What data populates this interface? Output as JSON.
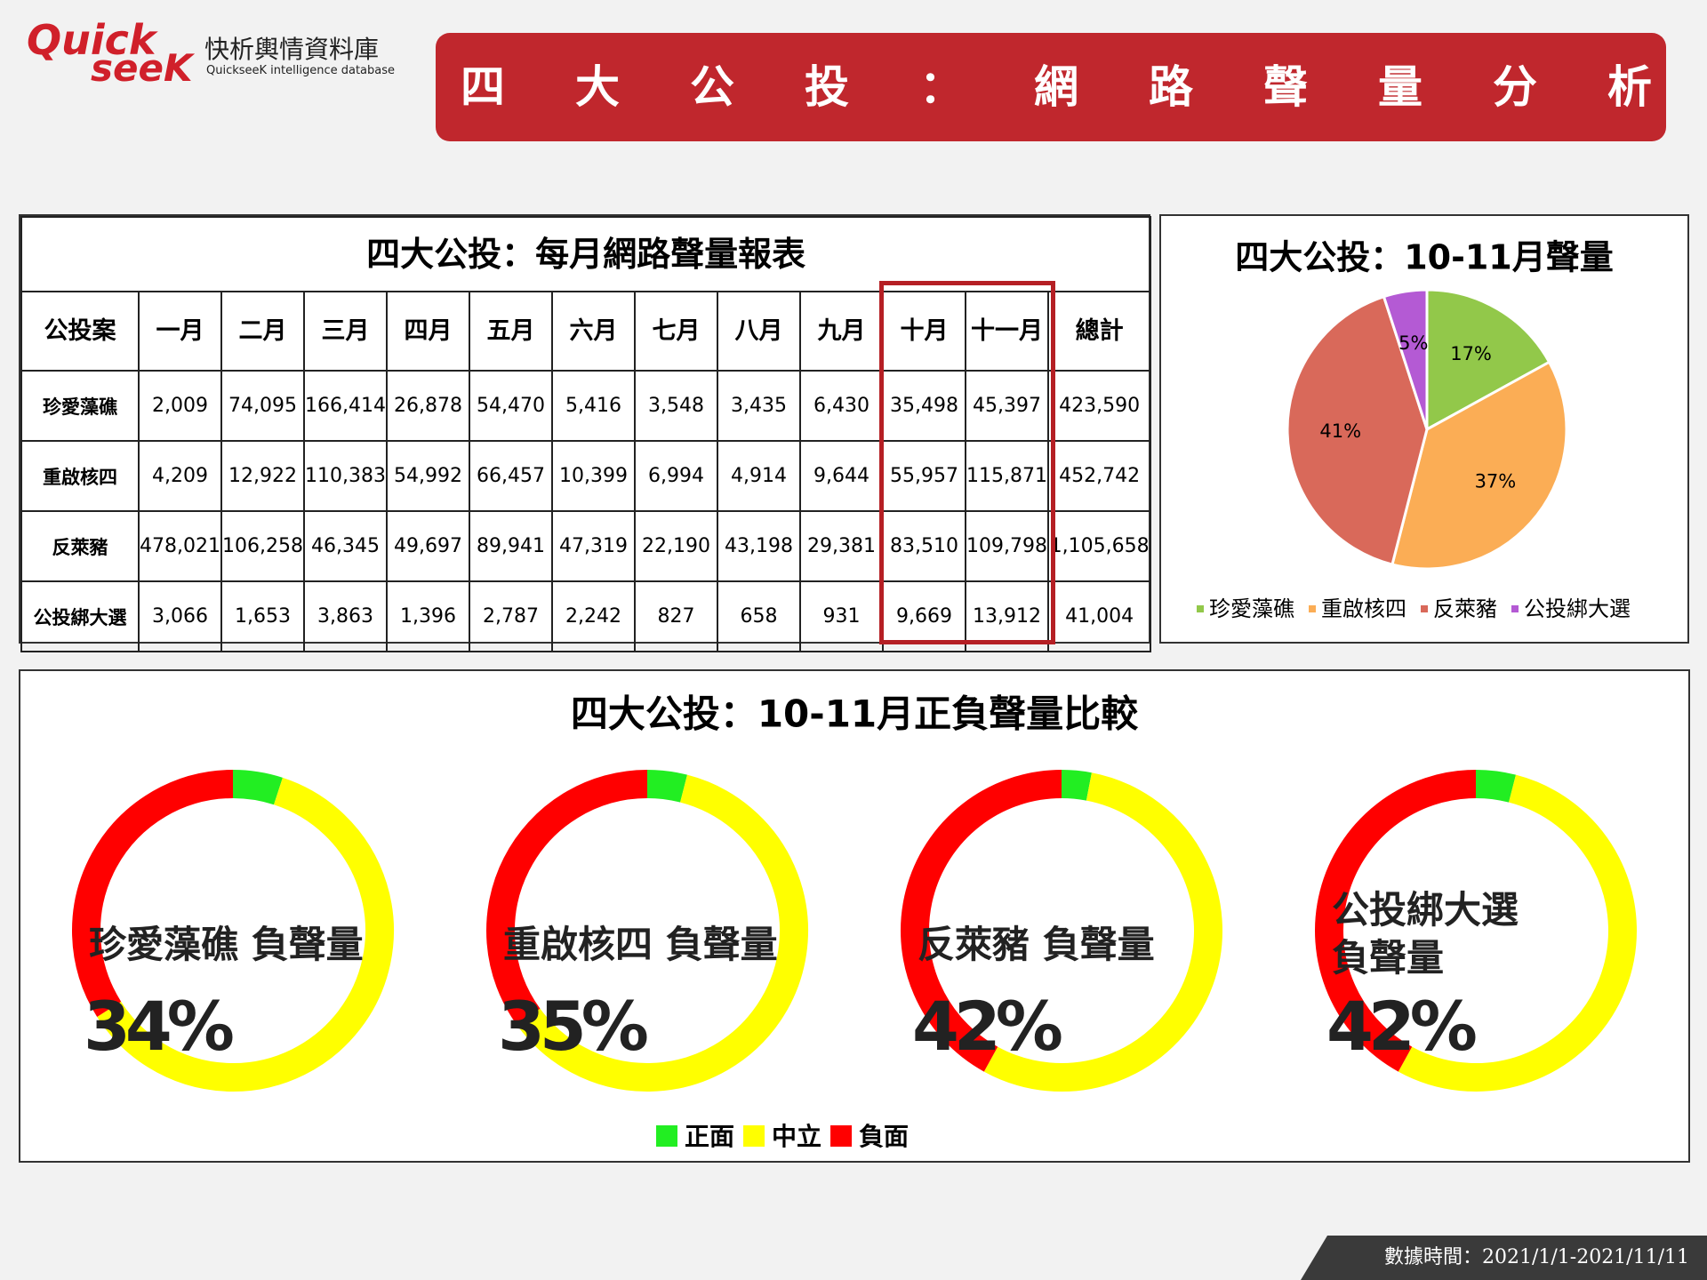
{
  "header": {
    "logo_lines": [
      "Quick",
      "seeK"
    ],
    "brand": "快析輿情資料庫",
    "brand_en": "QuickseeK intelligence database",
    "title": "四大公投：網路聲量分析"
  },
  "table": {
    "title": "四大公投：每月網路聲量報表",
    "header": [
      "公投案",
      "一月",
      "二月",
      "三月",
      "四月",
      "五月",
      "六月",
      "七月",
      "八月",
      "九月",
      "十月",
      "十一月",
      "總計"
    ],
    "rows": [
      [
        "珍愛藻礁",
        "2,009",
        "74,095",
        "166,414",
        "26,878",
        "54,470",
        "5,416",
        "3,548",
        "3,435",
        "6,430",
        "35,498",
        "45,397",
        "423,590"
      ],
      [
        "重啟核四",
        "4,209",
        "12,922",
        "110,383",
        "54,992",
        "66,457",
        "10,399",
        "6,994",
        "4,914",
        "9,644",
        "55,957",
        "115,871",
        "452,742"
      ],
      [
        "反萊豬",
        "478,021",
        "106,258",
        "46,345",
        "49,697",
        "89,941",
        "47,319",
        "22,190",
        "43,198",
        "29,381",
        "83,510",
        "109,798",
        "1,105,658"
      ],
      [
        "公投綁大選",
        "3,066",
        "1,653",
        "3,863",
        "1,396",
        "2,787",
        "2,242",
        "827",
        "658",
        "931",
        "9,669",
        "13,912",
        "41,004"
      ]
    ]
  },
  "comparison": {
    "title": "四大公投：10-11月正負聲量比較"
  },
  "chart_data": [
    {
      "type": "pie",
      "title": "四大公投：10-11月聲量",
      "categories": [
        "珍愛藻礁",
        "重啟核四",
        "反萊豬",
        "公投綁大選"
      ],
      "values": [
        17,
        37,
        41,
        5
      ],
      "value_labels": [
        "17%",
        "37%",
        "41%",
        "5%"
      ],
      "colors": [
        "#92c84a",
        "#fbad55",
        "#d9695a",
        "#b45ad4"
      ]
    },
    {
      "type": "donut",
      "title": "珍愛藻礁 負聲量",
      "categories": [
        "正面",
        "中立",
        "負面"
      ],
      "values": [
        5,
        61,
        34
      ],
      "value_labels": [
        null,
        null,
        "34%"
      ],
      "colors": [
        "#22ee22",
        "#ffff00",
        "#ff0000"
      ]
    },
    {
      "type": "donut",
      "title": "重啟核四 負聲量",
      "categories": [
        "正面",
        "中立",
        "負面"
      ],
      "values": [
        4,
        61,
        35
      ],
      "value_labels": [
        null,
        null,
        "35%"
      ],
      "colors": [
        "#22ee22",
        "#ffff00",
        "#ff0000"
      ]
    },
    {
      "type": "donut",
      "title": "反萊豬 負聲量",
      "categories": [
        "正面",
        "中立",
        "負面"
      ],
      "values": [
        3,
        55,
        42
      ],
      "value_labels": [
        null,
        null,
        "42%"
      ],
      "colors": [
        "#22ee22",
        "#ffff00",
        "#ff0000"
      ]
    },
    {
      "type": "donut",
      "title": "公投綁大選 負聲量",
      "categories": [
        "正面",
        "中立",
        "負面"
      ],
      "values": [
        4,
        54,
        42
      ],
      "value_labels": [
        null,
        null,
        "42%"
      ],
      "colors": [
        "#22ee22",
        "#ffff00",
        "#ff0000"
      ]
    }
  ],
  "footer": {
    "source": "數據時間：2021/1/1-2021/11/11"
  }
}
